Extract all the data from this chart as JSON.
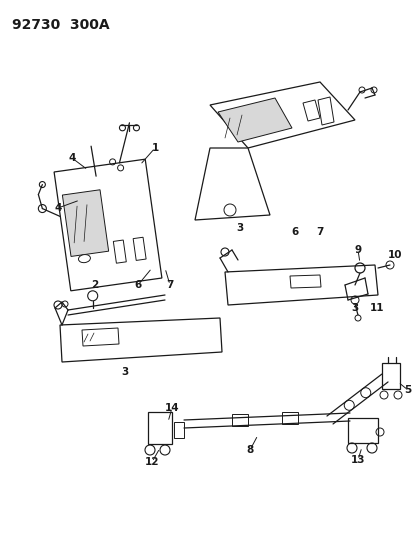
{
  "title": "92730  300A",
  "bg": "#ffffff",
  "lc": "#1a1a1a",
  "title_fs": 10,
  "lbl_fs": 7.5,
  "fig_w": 4.14,
  "fig_h": 5.33,
  "dpi": 100
}
